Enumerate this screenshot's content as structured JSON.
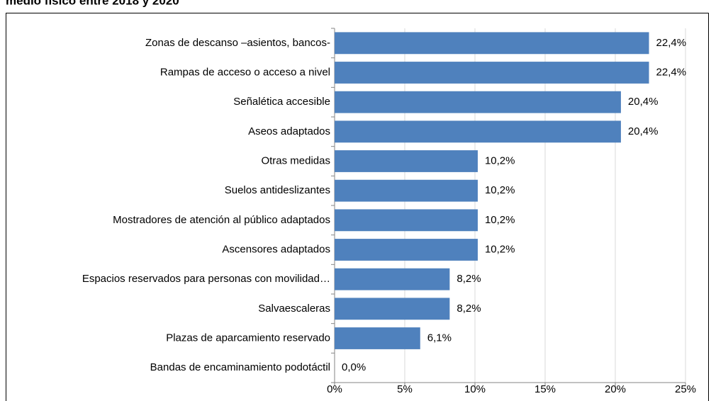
{
  "chart_data": {
    "type": "bar",
    "orientation": "horizontal",
    "title": "medio físico entre 2018 y 2020",
    "categories": [
      "Zonas de descanso –asientos, bancos-",
      "Rampas de acceso o acceso a nivel",
      "Señalética accesible",
      "Aseos adaptados",
      "Otras medidas",
      "Suelos antideslizantes",
      "Mostradores de atención al público adaptados",
      "Ascensores adaptados",
      "Espacios reservados para personas con movilidad…",
      "Salvaescaleras",
      "Plazas de aparcamiento reservado",
      "Bandas de encaminamiento podotáctil"
    ],
    "values": [
      22.4,
      22.4,
      20.4,
      20.4,
      10.2,
      10.2,
      10.2,
      10.2,
      8.2,
      8.2,
      6.1,
      0.0
    ],
    "value_labels": [
      "22,4%",
      "22,4%",
      "20,4%",
      "20,4%",
      "10,2%",
      "10,2%",
      "10,2%",
      "10,2%",
      "8,2%",
      "8,2%",
      "6,1%",
      "0,0%"
    ],
    "color": "#4f81bd",
    "xlim": [
      0,
      25
    ],
    "xticks": [
      {
        "value": 0,
        "label": "0%"
      },
      {
        "value": 5,
        "label": "5%"
      },
      {
        "value": 10,
        "label": "10%"
      },
      {
        "value": 15,
        "label": "15%"
      },
      {
        "value": 20,
        "label": "20%"
      },
      {
        "value": 25,
        "label": "25%"
      }
    ],
    "grid": true
  }
}
